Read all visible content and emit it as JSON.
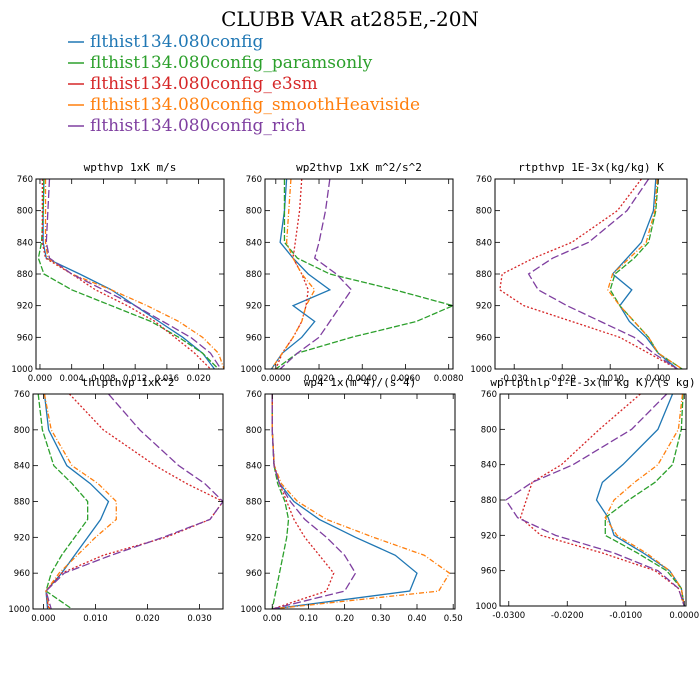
{
  "title": "CLUBB VAR at285E,-20N",
  "series_legend": [
    {
      "name": "flthist134.080config",
      "color": "#1f77b4",
      "dash": ""
    },
    {
      "name": "flthist134.080config_paramsonly",
      "color": "#2ca02c",
      "dash": "6,2"
    },
    {
      "name": "flthist134.080config_e3sm",
      "color": "#d62728",
      "dash": "2,2"
    },
    {
      "name": "flthist134.080config_smoothHeaviside",
      "color": "#ff7f0e",
      "dash": "5,2,1,2"
    },
    {
      "name": "flthist134.080config_rich",
      "color": "#7f3fa0",
      "dash": "8,3"
    }
  ],
  "chart_data": [
    {
      "type": "line",
      "title": "wpthvp  1xK m/s",
      "xlim": [
        -0.0005,
        0.0232
      ],
      "ylim": [
        760,
        1000
      ],
      "y_reversed": true,
      "xticks": [
        0.0,
        0.004,
        0.008,
        0.012,
        0.016,
        0.02
      ],
      "xtick_labels": [
        "0.000",
        "0.004",
        "0.008",
        "0.012",
        "0.016",
        "0.020"
      ],
      "yticks": [
        760,
        800,
        840,
        880,
        920,
        960,
        1000
      ],
      "y": [
        760,
        800,
        840,
        860,
        880,
        900,
        920,
        940,
        960,
        980,
        1000
      ],
      "series": [
        {
          "name": "flthist134.080config",
          "values": [
            0.0005,
            0.0004,
            0.0004,
            0.0008,
            0.005,
            0.009,
            0.012,
            0.015,
            0.018,
            0.0205,
            0.022
          ]
        },
        {
          "name": "flthist134.080config_paramsonly",
          "values": [
            0.0005,
            0.0004,
            0.0002,
            -0.0002,
            0.0005,
            0.004,
            0.009,
            0.014,
            0.0175,
            0.0205,
            0.0225
          ]
        },
        {
          "name": "flthist134.080config_e3sm",
          "values": [
            0.0003,
            0.0003,
            0.0003,
            0.0007,
            0.004,
            0.007,
            0.011,
            0.0145,
            0.017,
            0.0195,
            0.0215
          ]
        },
        {
          "name": "flthist134.080config_smoothHeaviside",
          "values": [
            0.0007,
            0.0007,
            0.0007,
            0.001,
            0.004,
            0.009,
            0.0135,
            0.0175,
            0.0205,
            0.0225,
            0.0232
          ]
        },
        {
          "name": "flthist134.080config_rich",
          "values": [
            0.0012,
            0.001,
            0.0008,
            0.0012,
            0.004,
            0.008,
            0.012,
            0.0155,
            0.019,
            0.0215,
            0.0228
          ]
        }
      ]
    },
    {
      "type": "line",
      "title": "wp2thvp  1xK m^2/s^2",
      "xlim": [
        -0.0005,
        0.0082
      ],
      "ylim": [
        760,
        1000
      ],
      "y_reversed": true,
      "xticks": [
        0.0,
        0.002,
        0.004,
        0.006,
        0.008
      ],
      "xtick_labels": [
        "0.0000",
        "0.0020",
        "0.0040",
        "0.0060",
        "0.0080"
      ],
      "yticks": [
        760,
        800,
        840,
        880,
        920,
        960,
        1000
      ],
      "y": [
        760,
        800,
        840,
        860,
        880,
        900,
        920,
        940,
        960,
        980,
        1000
      ],
      "series": [
        {
          "name": "flthist134.080config",
          "values": [
            0.0005,
            0.0004,
            0.0002,
            0.0008,
            0.0015,
            0.0025,
            0.0008,
            0.0018,
            0.0012,
            0.0003,
            -0.0002
          ]
        },
        {
          "name": "flthist134.080config_paramsonly",
          "values": [
            0.0004,
            0.0004,
            0.0004,
            0.001,
            0.0025,
            0.0055,
            0.0082,
            0.0065,
            0.0035,
            0.001,
            0.0
          ]
        },
        {
          "name": "flthist134.080config_e3sm",
          "values": [
            0.0012,
            0.0011,
            0.0009,
            0.0008,
            0.0012,
            0.0015,
            0.0014,
            0.0012,
            0.0008,
            0.0003,
            0.0
          ]
        },
        {
          "name": "flthist134.080config_smoothHeaviside",
          "values": [
            0.0007,
            0.0006,
            0.0005,
            0.0008,
            0.0012,
            0.0018,
            0.0014,
            0.0012,
            0.0008,
            0.0003,
            -0.0002
          ]
        },
        {
          "name": "flthist134.080config_rich",
          "values": [
            0.0025,
            0.0023,
            0.002,
            0.0018,
            0.0028,
            0.0035,
            0.003,
            0.0025,
            0.002,
            0.001,
            0.0002
          ]
        }
      ]
    },
    {
      "type": "line",
      "title": "rtpthvp  1E-3x(kg/kg) K",
      "xlim": [
        -0.034,
        0.006
      ],
      "ylim": [
        760,
        1000
      ],
      "y_reversed": true,
      "xticks": [
        -0.03,
        -0.02,
        -0.01,
        0.0
      ],
      "xtick_labels": [
        "-0.030",
        "-0.020",
        "-0.010",
        "0.000"
      ],
      "yticks": [
        760,
        800,
        840,
        880,
        920,
        960,
        1000
      ],
      "y": [
        760,
        800,
        840,
        860,
        880,
        900,
        920,
        940,
        960,
        980,
        1000
      ],
      "series": [
        {
          "name": "flthist134.080config",
          "values": [
            -0.0005,
            -0.001,
            -0.0035,
            -0.0065,
            -0.0095,
            -0.0055,
            -0.008,
            -0.006,
            -0.0025,
            0.0,
            0.004
          ]
        },
        {
          "name": "flthist134.080config_paramsonly",
          "values": [
            0.0,
            -0.0005,
            -0.002,
            -0.005,
            -0.009,
            -0.01,
            -0.008,
            -0.005,
            -0.002,
            0.0,
            0.005
          ]
        },
        {
          "name": "flthist134.080config_e3sm",
          "values": [
            -0.0035,
            -0.0085,
            -0.018,
            -0.026,
            -0.0325,
            -0.033,
            -0.028,
            -0.018,
            -0.008,
            -0.002,
            0.004
          ]
        },
        {
          "name": "flthist134.080config_smoothHeviside",
          "values": [
            -0.0002,
            -0.0007,
            -0.0025,
            -0.006,
            -0.0095,
            -0.0105,
            -0.008,
            -0.005,
            -0.002,
            0.0,
            0.005
          ]
        },
        {
          "name": "flthist134.080config_rich",
          "values": [
            -0.002,
            -0.0065,
            -0.0145,
            -0.022,
            -0.027,
            -0.025,
            -0.019,
            -0.012,
            -0.005,
            -0.001,
            0.004
          ]
        }
      ]
    },
    {
      "type": "line",
      "title": "thlpthvp  1xK^2",
      "xlim": [
        -0.002,
        0.0345
      ],
      "ylim": [
        760,
        1000
      ],
      "y_reversed": true,
      "xticks": [
        0.0,
        0.01,
        0.02,
        0.03
      ],
      "xtick_labels": [
        "0.000",
        "0.010",
        "0.020",
        "0.030"
      ],
      "yticks": [
        760,
        800,
        840,
        880,
        920,
        960,
        1000
      ],
      "y": [
        760,
        800,
        840,
        860,
        880,
        900,
        920,
        940,
        960,
        980,
        1000
      ],
      "series": [
        {
          "name": "flthist134.080config",
          "values": [
            0.0002,
            0.001,
            0.0045,
            0.009,
            0.0125,
            0.011,
            0.0085,
            0.006,
            0.0035,
            0.0005,
            0.0008
          ]
        },
        {
          "name": "flthist134.080config_paramsonly",
          "values": [
            -0.001,
            -0.0002,
            0.002,
            0.0055,
            0.0085,
            0.0085,
            0.006,
            0.0035,
            0.0015,
            0.0005,
            0.0055
          ]
        },
        {
          "name": "flthist134.080config_e3sm",
          "values": [
            0.005,
            0.0115,
            0.0215,
            0.0275,
            0.0345,
            0.032,
            0.0235,
            0.0115,
            0.0035,
            0.0005,
            0.001
          ]
        },
        {
          "name": "flthist134.080config_smoothHeaviside",
          "values": [
            0.0002,
            0.0015,
            0.0055,
            0.0105,
            0.014,
            0.014,
            0.01,
            0.0065,
            0.003,
            0.0005,
            0.0012
          ]
        },
        {
          "name": "flthist134.080config_rich",
          "values": [
            0.0125,
            0.0185,
            0.026,
            0.031,
            0.0345,
            0.032,
            0.023,
            0.013,
            0.004,
            0.0005,
            0.0015
          ]
        }
      ]
    },
    {
      "type": "line",
      "title": "wp4  1x(m^4)/(s^4)",
      "xlim": [
        -0.02,
        0.505
      ],
      "ylim": [
        760,
        1000
      ],
      "y_reversed": true,
      "xticks": [
        0.0,
        0.1,
        0.2,
        0.3,
        0.4,
        0.5
      ],
      "xtick_labels": [
        "0.00",
        "0.10",
        "0.20",
        "0.30",
        "0.40",
        "0.50"
      ],
      "yticks": [
        760,
        800,
        840,
        880,
        920,
        960,
        1000
      ],
      "y": [
        760,
        800,
        840,
        860,
        880,
        900,
        920,
        940,
        960,
        980,
        1000
      ],
      "series": [
        {
          "name": "flthist134.080config",
          "values": [
            0.0,
            0.0,
            0.005,
            0.02,
            0.06,
            0.13,
            0.23,
            0.34,
            0.4,
            0.38,
            0.0
          ]
        },
        {
          "name": "flthist134.080config_paramsonly",
          "values": [
            0.0,
            0.0,
            0.005,
            0.015,
            0.035,
            0.045,
            0.04,
            0.03,
            0.02,
            0.01,
            0.0
          ]
        },
        {
          "name": "flthist134.080config_e3sm",
          "values": [
            0.0,
            0.0,
            0.005,
            0.02,
            0.04,
            0.06,
            0.09,
            0.13,
            0.17,
            0.15,
            0.0
          ]
        },
        {
          "name": "flthist134.080config_smoothHeaviside",
          "values": [
            0.0,
            0.0,
            0.006,
            0.025,
            0.07,
            0.15,
            0.28,
            0.42,
            0.49,
            0.46,
            0.0
          ]
        },
        {
          "name": "flthist134.080config_rich",
          "values": [
            0.0,
            0.0,
            0.005,
            0.02,
            0.05,
            0.09,
            0.15,
            0.2,
            0.23,
            0.2,
            0.0
          ]
        }
      ]
    },
    {
      "type": "line",
      "title": "wprtpthlp  1-E-3x(m kg K)/(s kg)",
      "xlim": [
        -0.0315,
        0.0003
      ],
      "ylim": [
        760,
        1000
      ],
      "y_reversed": true,
      "xticks": [
        -0.03,
        -0.02,
        -0.01,
        0.0
      ],
      "xtick_labels": [
        "-0.0300",
        "-0.0200",
        "-0.0100",
        "0.0000"
      ],
      "yticks": [
        760,
        800,
        840,
        880,
        920,
        960,
        1000
      ],
      "y": [
        760,
        800,
        840,
        860,
        880,
        900,
        920,
        940,
        960,
        980,
        1000
      ],
      "series": [
        {
          "name": "flthist134.080config",
          "values": [
            -0.002,
            -0.0045,
            -0.0105,
            -0.014,
            -0.015,
            -0.013,
            -0.012,
            -0.007,
            -0.0025,
            -0.0005,
            0.0
          ]
        },
        {
          "name": "flthist134.080config_paramsonly",
          "values": [
            -0.0002,
            -0.0005,
            -0.002,
            -0.005,
            -0.0095,
            -0.0135,
            -0.0135,
            -0.008,
            -0.003,
            -0.0005,
            0.0
          ]
        },
        {
          "name": "flthist134.080config_e3sm",
          "values": [
            -0.0075,
            -0.0145,
            -0.021,
            -0.026,
            -0.027,
            -0.028,
            -0.0245,
            -0.014,
            -0.005,
            -0.001,
            0.0
          ]
        },
        {
          "name": "flthist134.080config_smoothHeaviside",
          "values": [
            -0.0003,
            -0.001,
            -0.0045,
            -0.0085,
            -0.012,
            -0.0135,
            -0.0115,
            -0.0065,
            -0.0025,
            -0.0005,
            0.0
          ]
        },
        {
          "name": "flthist134.080config_rich",
          "values": [
            -0.003,
            -0.009,
            -0.019,
            -0.026,
            -0.0305,
            -0.0285,
            -0.022,
            -0.012,
            -0.0045,
            -0.001,
            0.0
          ]
        }
      ]
    }
  ]
}
